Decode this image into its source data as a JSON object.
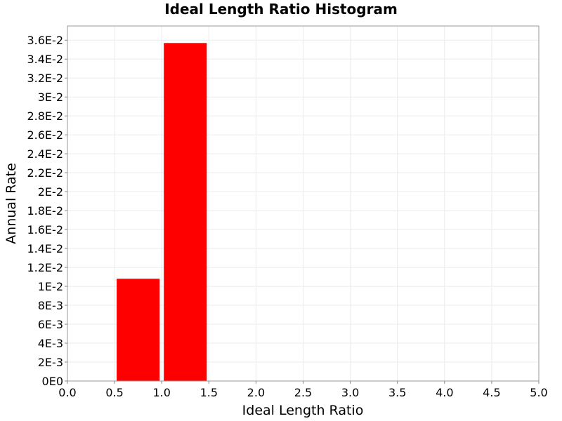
{
  "chart_data": {
    "type": "bar",
    "title": "Ideal Length Ratio Histogram",
    "xlabel": "Ideal Length Ratio",
    "ylabel": "Annual Rate",
    "xlim": [
      0,
      5
    ],
    "ylim": [
      0,
      0.0375
    ],
    "x_ticks": [
      {
        "value": 0.0,
        "label": "0.0"
      },
      {
        "value": 0.5,
        "label": "0.5"
      },
      {
        "value": 1.0,
        "label": "1.0"
      },
      {
        "value": 1.5,
        "label": "1.5"
      },
      {
        "value": 2.0,
        "label": "2.0"
      },
      {
        "value": 2.5,
        "label": "2.5"
      },
      {
        "value": 3.0,
        "label": "3.0"
      },
      {
        "value": 3.5,
        "label": "3.5"
      },
      {
        "value": 4.0,
        "label": "4.0"
      },
      {
        "value": 4.5,
        "label": "4.5"
      },
      {
        "value": 5.0,
        "label": "5.0"
      }
    ],
    "y_ticks": [
      {
        "value": 0,
        "label": "0E0"
      },
      {
        "value": 0.002,
        "label": "2E-3"
      },
      {
        "value": 0.004,
        "label": "4E-3"
      },
      {
        "value": 0.006,
        "label": "6E-3"
      },
      {
        "value": 0.008,
        "label": "8E-3"
      },
      {
        "value": 0.01,
        "label": "1E-2"
      },
      {
        "value": 0.012,
        "label": "1.2E-2"
      },
      {
        "value": 0.014,
        "label": "1.4E-2"
      },
      {
        "value": 0.016,
        "label": "1.6E-2"
      },
      {
        "value": 0.018,
        "label": "1.8E-2"
      },
      {
        "value": 0.02,
        "label": "2E-2"
      },
      {
        "value": 0.022,
        "label": "2.2E-2"
      },
      {
        "value": 0.024,
        "label": "2.4E-2"
      },
      {
        "value": 0.026,
        "label": "2.6E-2"
      },
      {
        "value": 0.028,
        "label": "2.8E-2"
      },
      {
        "value": 0.03,
        "label": "3E-2"
      },
      {
        "value": 0.032,
        "label": "3.2E-2"
      },
      {
        "value": 0.034,
        "label": "3.4E-2"
      },
      {
        "value": 0.036,
        "label": "3.6E-2"
      }
    ],
    "bins": [
      {
        "x_start": 0.5,
        "x_end": 1.0,
        "value": 0.0108
      },
      {
        "x_start": 1.0,
        "x_end": 1.5,
        "value": 0.0357
      }
    ],
    "bar_color": "#ff0000",
    "grid": true,
    "legend": "none"
  }
}
